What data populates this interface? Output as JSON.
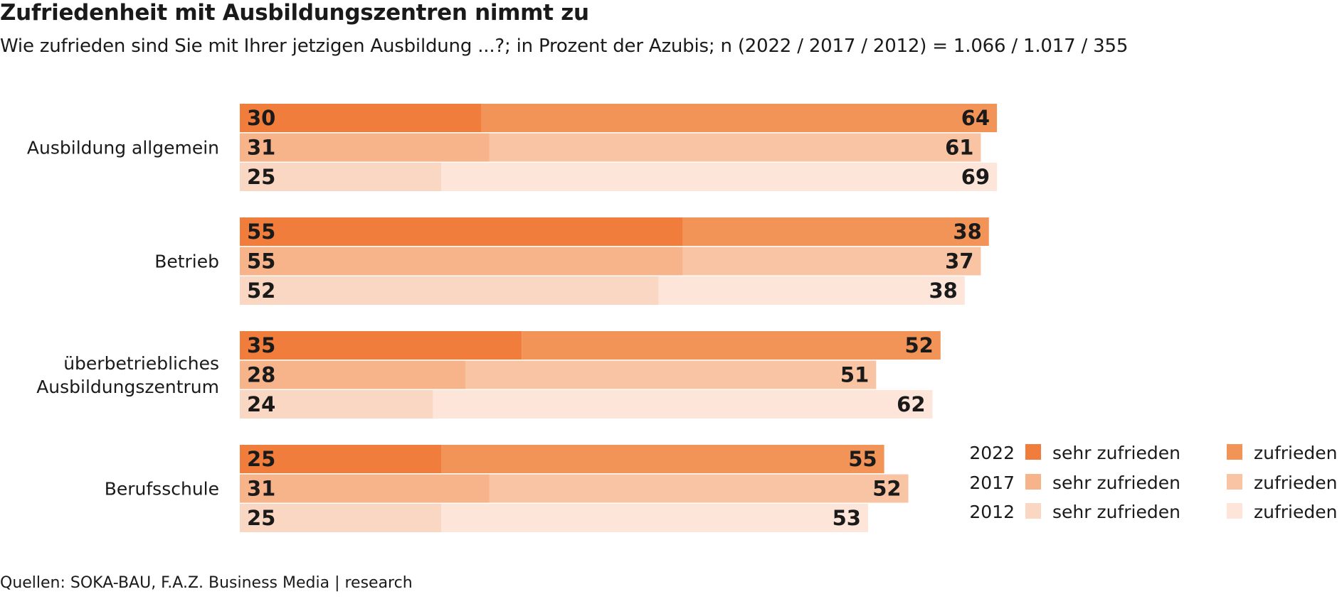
{
  "title": "Zufriedenheit mit Ausbildungszentren nimmt zu",
  "subtitle": "Wie zufrieden sind Sie mit Ihrer jetzigen Ausbildung ...?; in Prozent der Azubis; n (2022 / 2017 / 2012) = 1.066 / 1.017 / 355",
  "source": "Quellen: SOKA-BAU, F.A.Z. Business Media | research",
  "chart_data": {
    "type": "bar",
    "orientation": "horizontal",
    "stacked": true,
    "value_max": 100,
    "categories": [
      "Ausbildung allgemein",
      "Betrieb",
      "überbetriebliches Ausbildungszentrum",
      "Berufsschule"
    ],
    "category_lines": [
      [
        "Ausbildung allgemein"
      ],
      [
        "Betrieb"
      ],
      [
        "überbetriebliches",
        "Ausbildungszentrum"
      ],
      [
        "Berufsschule"
      ]
    ],
    "years": [
      "2022",
      "2017",
      "2012"
    ],
    "series": [
      {
        "year": "2022",
        "name": "sehr zufrieden",
        "color": "#f07d3c",
        "values": [
          30,
          55,
          35,
          25
        ]
      },
      {
        "year": "2022",
        "name": "zufrieden",
        "color": "#f29358",
        "values": [
          64,
          38,
          52,
          55
        ]
      },
      {
        "year": "2017",
        "name": "sehr zufrieden",
        "color": "#f7b48a",
        "values": [
          31,
          55,
          28,
          31
        ]
      },
      {
        "year": "2017",
        "name": "zufrieden",
        "color": "#f9c4a3",
        "values": [
          61,
          37,
          51,
          52
        ]
      },
      {
        "year": "2012",
        "name": "sehr zufrieden",
        "color": "#fad7c2",
        "values": [
          25,
          52,
          24,
          25
        ]
      },
      {
        "year": "2012",
        "name": "zufrieden",
        "color": "#fde6d9",
        "values": [
          69,
          38,
          62,
          53
        ]
      }
    ],
    "legend_position": "bottom-right",
    "grid": false
  }
}
